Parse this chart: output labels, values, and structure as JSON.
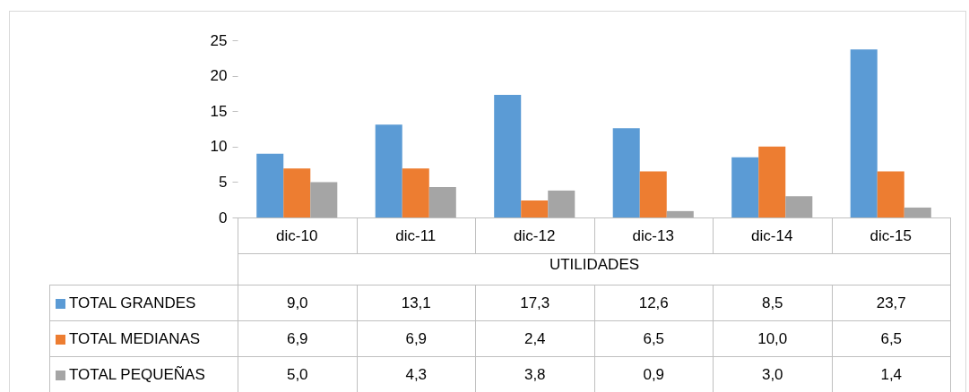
{
  "chart_data": {
    "type": "bar",
    "xlabel": "UTILIDADES",
    "categories": [
      "dic-10",
      "dic-11",
      "dic-12",
      "dic-13",
      "dic-14",
      "dic-15"
    ],
    "series": [
      {
        "name": "TOTAL GRANDES",
        "color": "#5b9bd5",
        "values": [
          9.0,
          13.1,
          17.3,
          12.6,
          8.5,
          23.7
        ],
        "value_labels": [
          "9,0",
          "13,1",
          "17,3",
          "12,6",
          "8,5",
          "23,7"
        ]
      },
      {
        "name": "TOTAL MEDIANAS",
        "color": "#ed7d31",
        "values": [
          6.9,
          6.9,
          2.4,
          6.5,
          10.0,
          6.5
        ],
        "value_labels": [
          "6,9",
          "6,9",
          "2,4",
          "6,5",
          "10,0",
          "6,5"
        ]
      },
      {
        "name": "TOTAL PEQUEÑAS",
        "color": "#a5a5a5",
        "values": [
          5.0,
          4.3,
          3.8,
          0.9,
          3.0,
          1.4
        ],
        "value_labels": [
          "5,0",
          "4,3",
          "3,8",
          "0,9",
          "3,0",
          "1,4"
        ]
      }
    ],
    "ylim": [
      0,
      25
    ],
    "yticks": [
      0,
      5,
      10,
      15,
      20,
      25
    ],
    "legend": "bottom"
  }
}
